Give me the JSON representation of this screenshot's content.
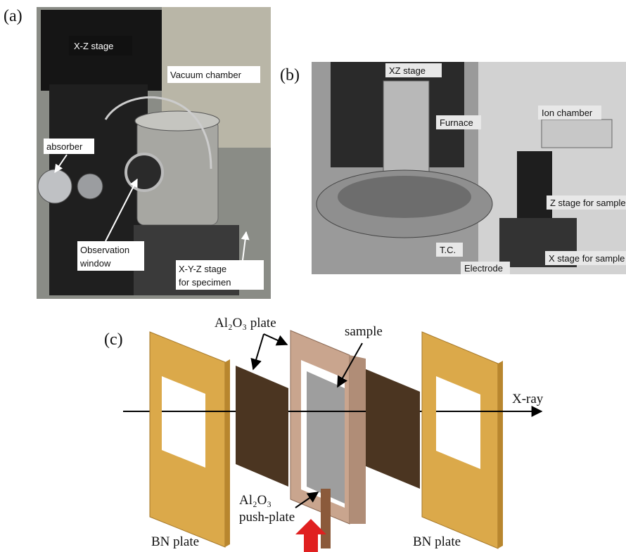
{
  "panel_a": {
    "label": "(a)",
    "callouts": [
      "X-Z stage",
      "Vacuum chamber",
      "absorber"
    ],
    "observation_window": [
      "Observation",
      "window"
    ],
    "xyz_stage": [
      "X-Y-Z stage",
      "for specimen"
    ]
  },
  "panel_b": {
    "label": "(b)",
    "callouts": [
      "XZ stage",
      "Furnace",
      "Ion chamber",
      "Z stage for sample",
      "T.C.",
      "Electrode",
      "X stage for sample"
    ]
  },
  "panel_c": {
    "label": "(c)",
    "al2o3_plate": "Al₂O₃ plate",
    "sample": "sample",
    "xray": "X-ray",
    "push_plate": [
      "Al₂O₃",
      "push-plate"
    ],
    "bn_left": "BN plate",
    "bn_right": "BN plate"
  }
}
